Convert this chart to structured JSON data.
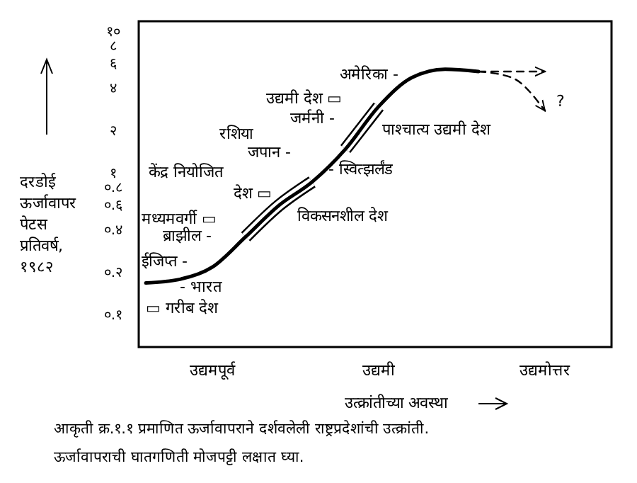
{
  "chart_data": {
    "type": "line",
    "xlabel": "उत्क्रांतीच्या अवस्था",
    "ylabel": "दरडोई ऊर्जावापर पेटस प्रतिवर्ष, १९८२",
    "log": "y",
    "grid": false,
    "marker": "none",
    "categories": [
      null,
      null,
      "उद्यमपूर्व",
      null,
      null,
      null,
      null,
      "उद्यमी",
      null,
      null,
      null,
      null,
      "उद्यमोत्तर"
    ],
    "ylim": [
      0.06,
      12
    ],
    "yticks": [
      {
        "value": 0.1,
        "label": "०.१"
      },
      {
        "value": 0.2,
        "label": "०.२"
      },
      {
        "value": 0.4,
        "label": "०.४"
      },
      {
        "value": 0.6,
        "label": "०.६"
      },
      {
        "value": 0.8,
        "label": "०.८"
      },
      {
        "value": 1,
        "label": "१"
      },
      {
        "value": 2,
        "label": "२"
      },
      {
        "value": 4,
        "label": "४"
      },
      {
        "value": 6,
        "label": "६"
      },
      {
        "value": 8,
        "label": "८"
      },
      {
        "value": 10,
        "label": "१०"
      }
    ],
    "series": [
      {
        "color": "#000000",
        "line_style": "solid",
        "values": [
          0.17,
          0.18,
          0.22,
          0.36,
          0.6,
          0.88,
          1.5,
          3,
          4.8,
          5.5,
          5.3,
          null,
          null
        ]
      },
      {
        "color": "#000000",
        "line_style": "dashed",
        "values": [
          null,
          null,
          null,
          null,
          null,
          null,
          null,
          null,
          null,
          null,
          5.3,
          5.3,
          5.3
        ]
      },
      {
        "color": "#000000",
        "line_style": "dashed",
        "values": [
          null,
          null,
          null,
          null,
          null,
          null,
          null,
          null,
          null,
          null,
          5.3,
          4.8,
          2.8
        ]
      }
    ],
    "annotations": [
      "अमेरिका -",
      "उद्यमी देश ▭",
      "जर्मनी -",
      "रशिया",
      "जपान -",
      "केंद्र नियोजित",
      "देश ▭",
      "मध्यमवर्गी ▭",
      "ब्राझील -",
      "ईजिप्त -",
      "- भारत",
      "▭ गरीब देश",
      "विकसनशील देश",
      "- स्वित्झर्लंड",
      "पाश्चात्य उद्यमी देश",
      "?",
      "आकृती क्र.१.१ प्रमाणित ऊर्जावापराने दर्शवलेली राष्ट्रप्रदेशांची उत्क्रांती.",
      "ऊर्जावापराची घातगणिती मोजपट्टी लक्षात घ्या."
    ]
  }
}
